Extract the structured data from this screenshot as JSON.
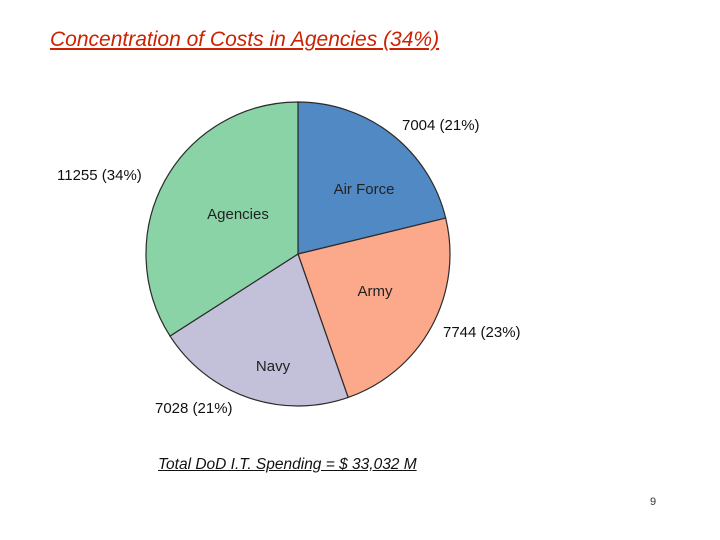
{
  "slide": {
    "title": "Concentration of Costs in Agencies (34%)",
    "caption": "Total DoD I.T. Spending = $ 33,032 M",
    "page_number": "9"
  },
  "chart_data": {
    "type": "pie",
    "title": "",
    "slices": [
      {
        "name": "Air Force",
        "value": 7004,
        "percent_label": "7004 (21%)",
        "color": "#5189c4"
      },
      {
        "name": "Army",
        "value": 7744,
        "percent_label": "7744 (23%)",
        "color": "#fca88a"
      },
      {
        "name": "Navy",
        "value": 7028,
        "percent_label": "7028 (21%)",
        "color": "#c3c1da"
      },
      {
        "name": "Agencies",
        "value": 11255,
        "percent_label": "11255 (34%)",
        "color": "#89d3a6"
      }
    ],
    "start_angle": "12 o'clock",
    "direction": "clockwise",
    "legend": "none"
  }
}
